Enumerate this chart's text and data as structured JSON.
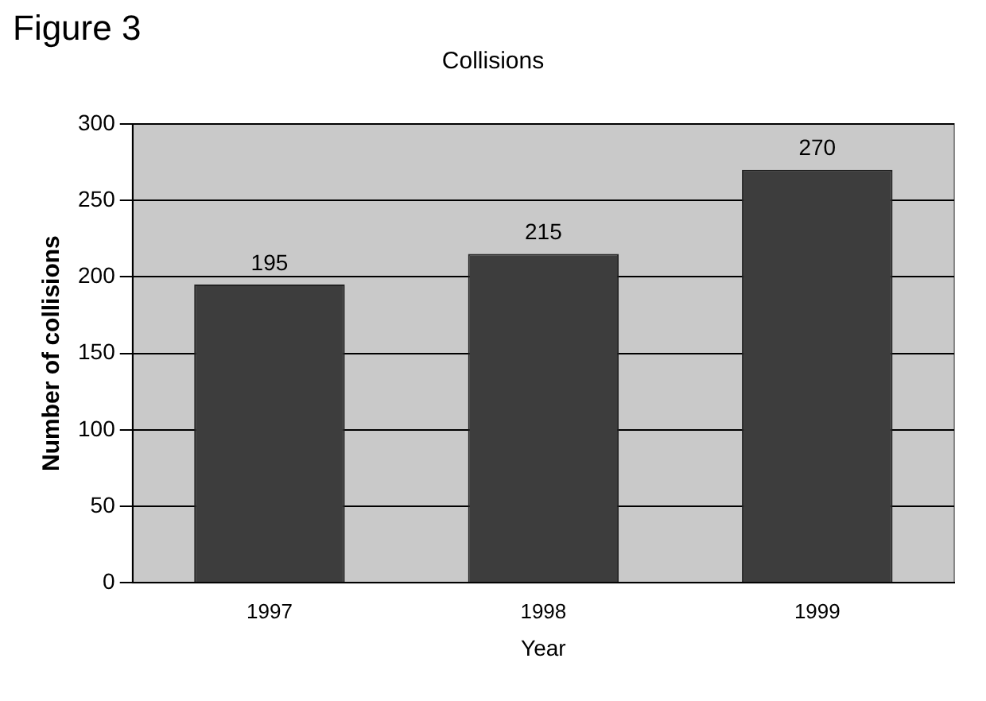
{
  "chart_data": {
    "type": "bar",
    "title": "Collisions",
    "xlabel": "Year",
    "ylabel": "Number of collisions",
    "annotations": [
      "Figure 3"
    ],
    "categories": [
      "1997",
      "1998",
      "1999"
    ],
    "values": [
      195,
      215,
      270
    ],
    "color": "#3d3d3d",
    "ylim": [
      0,
      300
    ],
    "yticks": [
      0,
      50,
      100,
      150,
      200,
      250,
      300
    ],
    "grid": "y",
    "data_labels": true
  }
}
